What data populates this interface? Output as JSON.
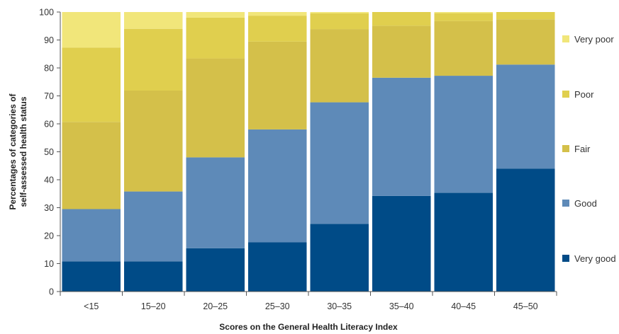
{
  "chart_data": {
    "type": "bar",
    "stacked": true,
    "categories": [
      "<15",
      "15–20",
      "20–25",
      "25–30",
      "30–35",
      "35–40",
      "40–45",
      "45–50"
    ],
    "series": [
      {
        "name": "Very good",
        "color": "#004b87",
        "values": [
          10.8,
          10.8,
          15.5,
          17.6,
          24.2,
          34.2,
          35.3,
          44.0
        ]
      },
      {
        "name": "Good",
        "color": "#5e8ab8",
        "values": [
          18.7,
          25.0,
          32.5,
          40.4,
          43.5,
          42.3,
          41.9,
          37.2
        ]
      },
      {
        "name": "Fair",
        "color": "#d4c04a",
        "values": [
          31.2,
          36.1,
          35.4,
          31.4,
          26.2,
          18.6,
          19.6,
          16.2
        ]
      },
      {
        "name": "Poor",
        "color": "#e0cf4e",
        "values": [
          26.6,
          22.1,
          14.6,
          9.3,
          5.6,
          4.9,
          2.8,
          2.6
        ]
      },
      {
        "name": "Very poor",
        "color": "#f1e67a",
        "values": [
          12.7,
          6.0,
          2.0,
          1.3,
          0.5,
          0.0,
          0.4,
          0.0
        ]
      }
    ],
    "xlabel": "Scores on the General Health Literacy Index",
    "ylabel": [
      "Percentages of categories of",
      "self-assessed health status"
    ],
    "ylim": [
      0,
      100
    ],
    "yticks": [
      0,
      10,
      20,
      30,
      40,
      50,
      60,
      70,
      80,
      90,
      100
    ],
    "legend_position": "right",
    "legend_order": [
      "Very poor",
      "Poor",
      "Fair",
      "Good",
      "Very good"
    ],
    "grid": false
  }
}
